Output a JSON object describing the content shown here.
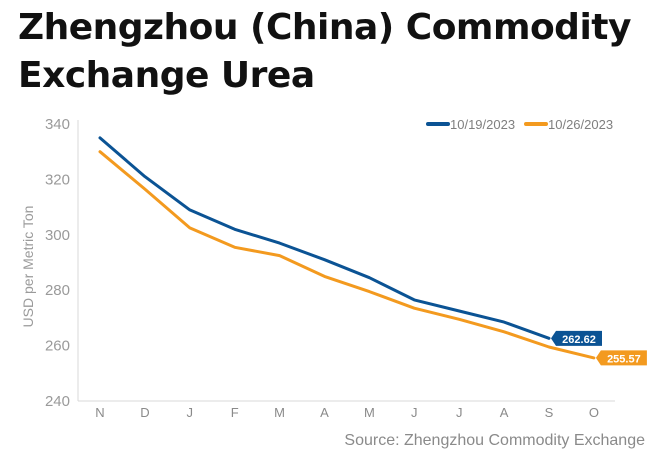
{
  "header": {
    "title": "Zhengzhou (China) Commodity Exchange Urea"
  },
  "footer": {
    "source": "Source: Zhengzhou Commodity Exchange"
  },
  "chart_data": {
    "type": "line",
    "title": "Zhengzhou (China) Commodity Exchange Urea",
    "xlabel": "",
    "ylabel": "USD per Metric Ton",
    "categories": [
      "N",
      "D",
      "J",
      "F",
      "M",
      "A",
      "M",
      "J",
      "J",
      "A",
      "S",
      "O"
    ],
    "ylim": [
      240,
      340
    ],
    "yticks": [
      240,
      260,
      280,
      300,
      320,
      340
    ],
    "grid": false,
    "legend": "top-right",
    "series": [
      {
        "name": "10/19/2023",
        "color": "#0b5394",
        "values": [
          335,
          321,
          309,
          302,
          297,
          291,
          284.5,
          276.5,
          272.5,
          268.5,
          262.62,
          null
        ],
        "end_label": "262.62"
      },
      {
        "name": "10/26/2023",
        "color": "#f39a1f",
        "values": [
          330,
          316.5,
          302.5,
          295.5,
          292.5,
          285,
          279.5,
          273.5,
          269.5,
          265,
          259.5,
          255.57
        ],
        "end_label": "255.57"
      }
    ]
  }
}
